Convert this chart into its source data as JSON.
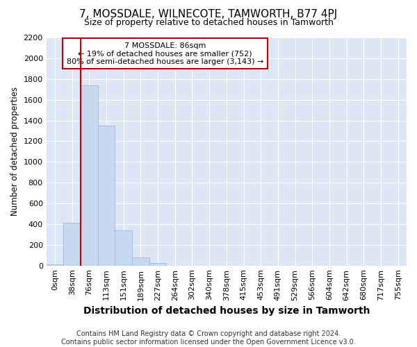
{
  "title": "7, MOSSDALE, WILNECOTE, TAMWORTH, B77 4PJ",
  "subtitle": "Size of property relative to detached houses in Tamworth",
  "xlabel": "Distribution of detached houses by size in Tamworth",
  "ylabel": "Number of detached properties",
  "footer_line1": "Contains HM Land Registry data © Crown copyright and database right 2024.",
  "footer_line2": "Contains public sector information licensed under the Open Government Licence v3.0.",
  "annotation_line1": "7 MOSSDALE: 86sqm",
  "annotation_line2": "← 19% of detached houses are smaller (752)",
  "annotation_line3": "80% of semi-detached houses are larger (3,143) →",
  "bar_color": "#c6d9f0",
  "bar_edge_color": "#9ab8e0",
  "vline_color": "#cc0000",
  "annotation_box_edge": "#cc0000",
  "plot_bg_color": "#dce6f5",
  "fig_bg_color": "#ffffff",
  "grid_color": "#ffffff",
  "categories": [
    "0sqm",
    "38sqm",
    "76sqm",
    "113sqm",
    "151sqm",
    "189sqm",
    "227sqm",
    "264sqm",
    "302sqm",
    "340sqm",
    "378sqm",
    "415sqm",
    "453sqm",
    "491sqm",
    "529sqm",
    "566sqm",
    "604sqm",
    "642sqm",
    "680sqm",
    "717sqm",
    "755sqm"
  ],
  "values": [
    10,
    410,
    1740,
    1350,
    340,
    75,
    25,
    0,
    0,
    0,
    0,
    0,
    0,
    0,
    0,
    0,
    0,
    0,
    0,
    0,
    0
  ],
  "ylim": [
    0,
    2200
  ],
  "yticks": [
    0,
    200,
    400,
    600,
    800,
    1000,
    1200,
    1400,
    1600,
    1800,
    2000,
    2200
  ],
  "vline_x_index": 2,
  "title_fontsize": 11,
  "subtitle_fontsize": 9,
  "xlabel_fontsize": 10,
  "ylabel_fontsize": 8.5,
  "tick_fontsize": 8,
  "footer_fontsize": 7
}
